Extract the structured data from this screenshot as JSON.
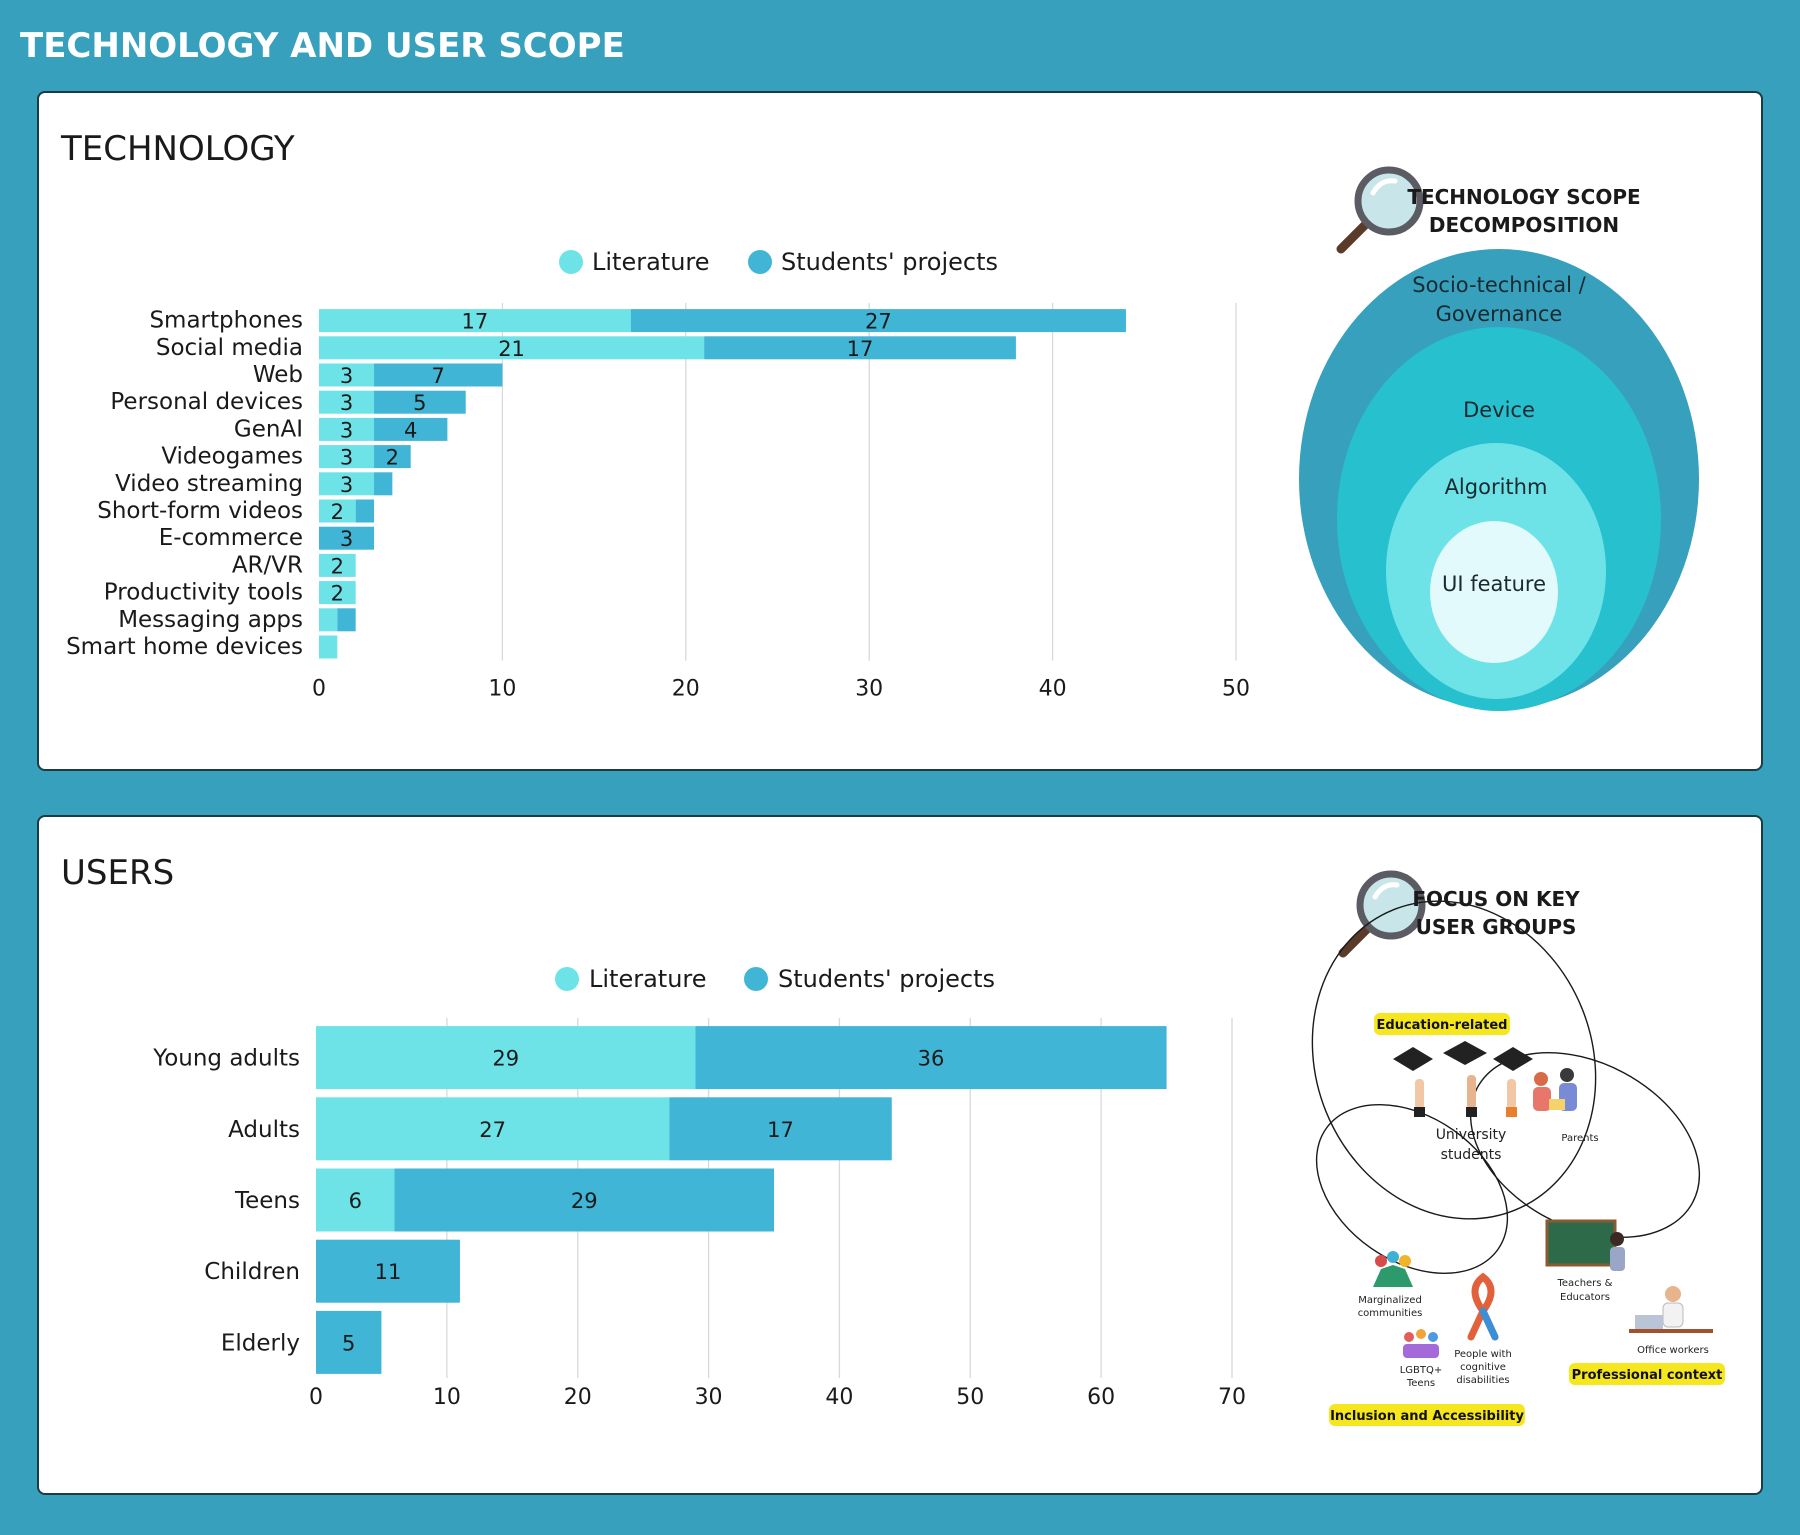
{
  "page_title": "TECHNOLOGY AND USER SCOPE",
  "colors": {
    "literature": "#6de3e8",
    "students_projects": "#41b5d5",
    "background": "#37a0bd"
  },
  "technology": {
    "title": "TECHNOLOGY",
    "legend": [
      "Literature",
      "Students' projects"
    ],
    "side_heading": [
      "TECHNOLOGY SCOPE",
      "DECOMPOSITION"
    ],
    "scope_rings": [
      "Socio-technical /",
      "Governance",
      "Device",
      "Algorithm",
      "UI feature"
    ]
  },
  "users": {
    "title": "USERS",
    "legend": [
      "Literature",
      "Students' projects"
    ],
    "side_heading": [
      "FOCUS ON KEY",
      "USER GROUPS"
    ],
    "group_tags": [
      "Education-related",
      "Professional context",
      "Inclusion and Accessibility"
    ],
    "groups": [
      "University",
      "students",
      "Parents",
      "Teachers &",
      "Educators",
      "Office workers",
      "Marginalized",
      "communities",
      "LGBTQ+",
      "Teens",
      "People with",
      "cognitive",
      "disabilities"
    ]
  },
  "chart_data": [
    {
      "type": "bar",
      "orientation": "horizontal",
      "stacked": true,
      "categories": [
        "Smartphones",
        "Social media",
        "Web",
        "Personal devices",
        "GenAI",
        "Videogames",
        "Video streaming",
        "Short-form videos",
        "E-commerce",
        "AR/VR",
        "Productivity tools",
        "Messaging apps",
        "Smart home devices"
      ],
      "series": [
        {
          "name": "Literature",
          "values": [
            17,
            21,
            3,
            3,
            3,
            3,
            3,
            2,
            0,
            2,
            2,
            1,
            1
          ]
        },
        {
          "name": "Students' projects",
          "values": [
            27,
            17,
            7,
            5,
            4,
            2,
            1,
            1,
            3,
            0,
            0,
            1,
            0
          ]
        }
      ],
      "value_labels": [
        [
          "17",
          "27"
        ],
        [
          "21",
          "17"
        ],
        [
          "3",
          "7"
        ],
        [
          "3",
          "5"
        ],
        [
          "3",
          "4"
        ],
        [
          "3",
          "2"
        ],
        [
          "3",
          ""
        ],
        [
          "2",
          ""
        ],
        [
          "",
          "3"
        ],
        [
          "2",
          ""
        ],
        [
          "2",
          ""
        ],
        [
          "",
          ""
        ],
        [
          "",
          ""
        ]
      ],
      "xticks": [
        "0",
        "10",
        "20",
        "30",
        "40",
        "50"
      ],
      "xlim": [
        0,
        50
      ],
      "grid": true,
      "legend_position": "top"
    },
    {
      "type": "bar",
      "orientation": "horizontal",
      "stacked": true,
      "categories": [
        "Young adults",
        "Adults",
        "Teens",
        "Children",
        "Elderly"
      ],
      "series": [
        {
          "name": "Literature",
          "values": [
            29,
            27,
            6,
            0,
            0
          ]
        },
        {
          "name": "Students' projects",
          "values": [
            36,
            17,
            29,
            11,
            5
          ]
        }
      ],
      "value_labels": [
        [
          "29",
          "36"
        ],
        [
          "27",
          "17"
        ],
        [
          "6",
          "29"
        ],
        [
          "",
          "11"
        ],
        [
          "",
          "5"
        ]
      ],
      "xticks": [
        "0",
        "10",
        "20",
        "30",
        "40",
        "50",
        "60",
        "70"
      ],
      "xlim": [
        0,
        70
      ],
      "grid": true,
      "legend_position": "top"
    }
  ]
}
